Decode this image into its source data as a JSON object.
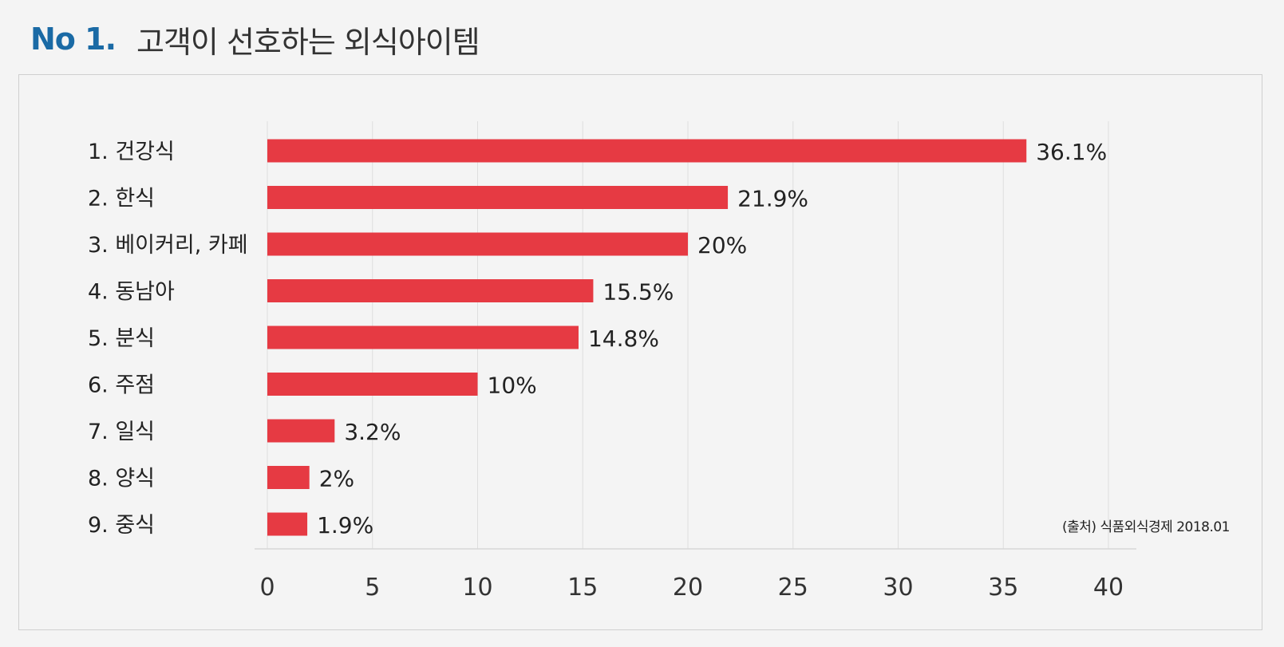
{
  "header": {
    "number": "No 1.",
    "title": "고객이 선호하는 외식아이템"
  },
  "source": "(출처) 식품외식경제 2018.01",
  "colors": {
    "bar": "#e63a43",
    "accent": "#1a6aa5"
  },
  "chart_data": {
    "type": "bar",
    "orientation": "horizontal",
    "categories": [
      "1. 건강식",
      "2. 한식",
      "3. 베이커리, 카페",
      "4. 동남아",
      "5. 분식",
      "6. 주점",
      "7. 일식",
      "8. 양식",
      "9. 중식"
    ],
    "values": [
      36.1,
      21.9,
      20,
      15.5,
      14.8,
      10,
      3.2,
      2,
      1.9
    ],
    "value_labels": [
      "36.1%",
      "21.9%",
      "20%",
      "15.5%",
      "14.8%",
      "10%",
      "3.2%",
      "2%",
      "1.9%"
    ],
    "xlim": [
      0,
      40
    ],
    "xticks": [
      0,
      5,
      10,
      15,
      20,
      25,
      30,
      35,
      40
    ],
    "grid": "vertical"
  }
}
